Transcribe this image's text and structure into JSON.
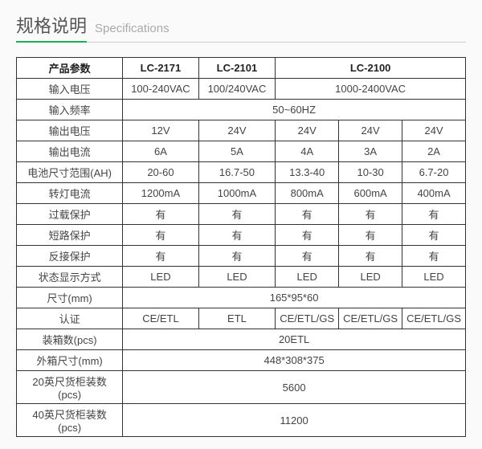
{
  "header": {
    "cn": "规格说明",
    "en": "Specifications"
  },
  "table": {
    "head": {
      "param": "产品参数",
      "m1": "LC-2171",
      "m2": "LC-2101",
      "m3": "LC-2100"
    },
    "rows": {
      "r1": {
        "label": "输入电压",
        "c1": "100-240VAC",
        "c2": "100/240VAC",
        "c3": "1000-2400VAC"
      },
      "r2": {
        "label": "输入频率",
        "v": "50~60HZ"
      },
      "r3": {
        "label": "输出电压",
        "c1": "12V",
        "c2": "24V",
        "c3": "24V",
        "c4": "24V",
        "c5": "24V"
      },
      "r4": {
        "label": "输出电流",
        "c1": "6A",
        "c2": "5A",
        "c3": "4A",
        "c4": "3A",
        "c5": "2A"
      },
      "r5": {
        "label": "电池尺寸范围(AH)",
        "c1": "20-60",
        "c2": "16.7-50",
        "c3": "13.3-40",
        "c4": "10-30",
        "c5": "6.7-20"
      },
      "r6": {
        "label": "转灯电流",
        "c1": "1200mA",
        "c2": "1000mA",
        "c3": "800mA",
        "c4": "600mA",
        "c5": "400mA"
      },
      "r7": {
        "label": "过载保护",
        "c1": "有",
        "c2": "有",
        "c3": "有",
        "c4": "有",
        "c5": "有"
      },
      "r8": {
        "label": "短路保护",
        "c1": "有",
        "c2": "有",
        "c3": "有",
        "c4": "有",
        "c5": "有"
      },
      "r9": {
        "label": "反接保护",
        "c1": "有",
        "c2": "有",
        "c3": "有",
        "c4": "有",
        "c5": "有"
      },
      "r10": {
        "label": "状态显示方式",
        "c1": "LED",
        "c2": "LED",
        "c3": "LED",
        "c4": "LED",
        "c5": "LED"
      },
      "r11": {
        "label": "尺寸(mm)",
        "v": "165*95*60"
      },
      "r12": {
        "label": "认证",
        "c1": "CE/ETL",
        "c2": "ETL",
        "c3": "CE/ETL/GS",
        "c4": "CE/ETL/GS",
        "c5": "CE/ETL/GS"
      },
      "r13": {
        "label": "装箱数(pcs)",
        "v": "20ETL"
      },
      "r14": {
        "label": "外箱尺寸(mm)",
        "v": "448*308*375"
      },
      "r15": {
        "label": "20英尺货柜装数(pcs)",
        "v": "5600"
      },
      "r16": {
        "label": "40英尺货柜装数(pcs)",
        "v": "11200"
      }
    }
  },
  "style": {
    "border_color": "#333333",
    "accent_color": "#1aad5a",
    "bg_color": "#fafafa",
    "cell_bg": "#ffffff",
    "header_cn_fontsize": 22,
    "header_en_fontsize": 15,
    "cell_fontsize": 13
  }
}
